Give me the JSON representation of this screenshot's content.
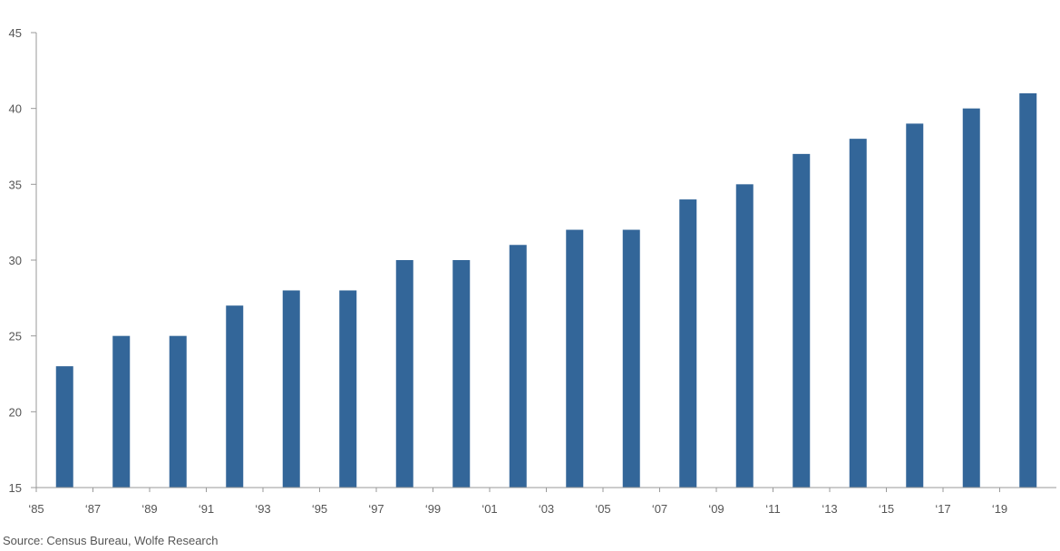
{
  "chart_data": {
    "type": "bar",
    "title": "",
    "xlabel": "",
    "ylabel": "",
    "categories": [
      "1986",
      "1988",
      "1990",
      "1992",
      "1994",
      "1996",
      "1998",
      "2000",
      "2002",
      "2004",
      "2006",
      "2008",
      "2010",
      "2012",
      "2014",
      "2016",
      "2018",
      "2020"
    ],
    "values": [
      23,
      25,
      25,
      27,
      28,
      28,
      30,
      30,
      31,
      32,
      32,
      34,
      35,
      37,
      38,
      39,
      40,
      41
    ],
    "ylim": [
      15,
      45
    ],
    "yticks": [
      15,
      20,
      25,
      30,
      35,
      40,
      45
    ],
    "xlim": [
      1985,
      2021
    ],
    "xticks": [
      {
        "year": 1985,
        "label": "‘85"
      },
      {
        "year": 1987,
        "label": "‘87"
      },
      {
        "year": 1989,
        "label": "‘89"
      },
      {
        "year": 1991,
        "label": "‘91"
      },
      {
        "year": 1993,
        "label": "‘93"
      },
      {
        "year": 1995,
        "label": "‘95"
      },
      {
        "year": 1997,
        "label": "‘97"
      },
      {
        "year": 1999,
        "label": "‘99"
      },
      {
        "year": 2001,
        "label": "‘01"
      },
      {
        "year": 2003,
        "label": "‘03"
      },
      {
        "year": 2005,
        "label": "‘05"
      },
      {
        "year": 2007,
        "label": "‘07"
      },
      {
        "year": 2009,
        "label": "‘09"
      },
      {
        "year": 2011,
        "label": "‘11"
      },
      {
        "year": 2013,
        "label": "‘13"
      },
      {
        "year": 2015,
        "label": "‘15"
      },
      {
        "year": 2017,
        "label": "‘17"
      },
      {
        "year": 2019,
        "label": "‘19"
      }
    ],
    "grid": false,
    "legend": "none",
    "bar_color": "#336699",
    "axis_color": "#999999"
  },
  "source": "Source: Census Bureau, Wolfe Research"
}
